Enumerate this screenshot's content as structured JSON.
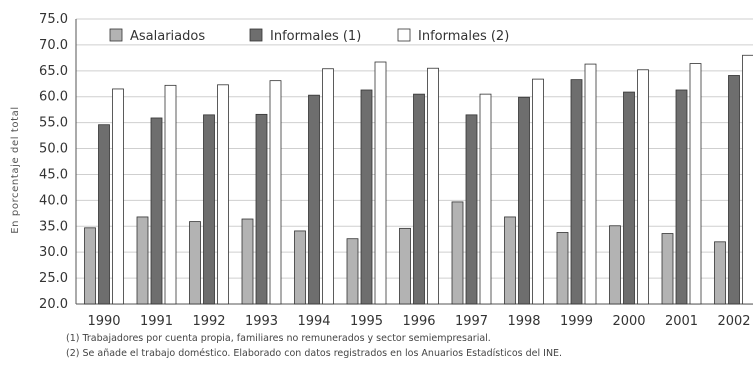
{
  "chart_data": {
    "type": "bar",
    "title": "",
    "xlabel": "",
    "ylabel": "En porcentaje del total",
    "ylim": [
      20,
      75
    ],
    "yticks": [
      "75.0",
      "70.0",
      "65.0",
      "60.0",
      "55.0",
      "50.0",
      "45.0",
      "40.0",
      "35.0",
      "30.0",
      "25.0",
      "20.0"
    ],
    "categories": [
      "1990",
      "1991",
      "1992",
      "1993",
      "1994",
      "1995",
      "1996",
      "1997",
      "1998",
      "1999",
      "2000",
      "2001",
      "2002"
    ],
    "series": [
      {
        "name": "Asalariados",
        "values": [
          34.7,
          36.8,
          35.9,
          36.4,
          34.1,
          32.6,
          34.6,
          39.7,
          36.8,
          33.8,
          35.1,
          33.6,
          32.0
        ],
        "color": "#b3b3b3"
      },
      {
        "name": "Informales (1)",
        "values": [
          54.6,
          55.9,
          56.5,
          56.6,
          60.3,
          61.3,
          60.5,
          56.5,
          59.9,
          63.3,
          60.9,
          61.3,
          64.1
        ],
        "color": "#6e6e6e"
      },
      {
        "name": "Informales (2)",
        "values": [
          61.5,
          62.2,
          62.3,
          63.1,
          65.4,
          66.7,
          65.5,
          60.5,
          63.4,
          66.3,
          65.2,
          66.4,
          68.0
        ],
        "color": "#ffffff"
      }
    ],
    "grid": true,
    "legend_position": "top-left"
  },
  "notes": [
    "(1) Trabajadores por cuenta propia, familiares no remunerados y sector  semiempresarial.",
    "(2) Se añade el trabajo doméstico. Elaborado con datos registrados en los Anuarios Estadísticos del INE."
  ]
}
